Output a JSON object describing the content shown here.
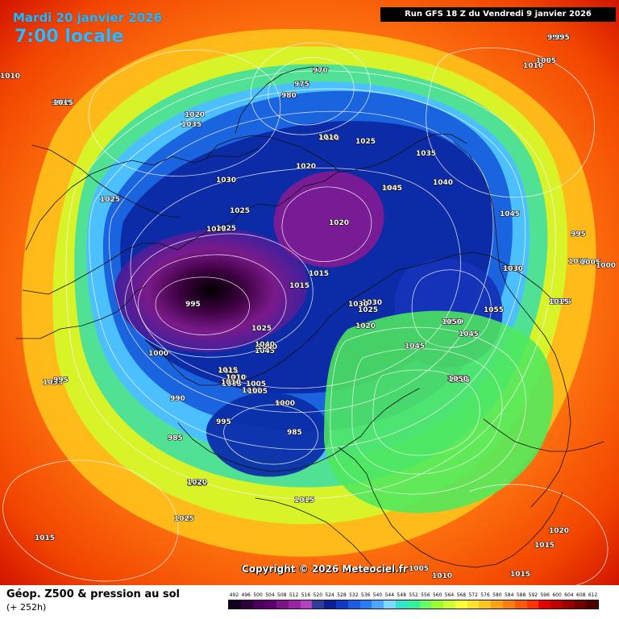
{
  "map": {
    "date_title": "Mardi 20 janvier 2026",
    "time_title": "7:00 locale",
    "run_info": "Run GFS 18 Z du Vendredi 9 janvier 2026",
    "copyright": "Copyright © 2026 Meteociel.fr",
    "variable_label": "Géop. Z500 & pression au sol",
    "forecast_hour": "(+ 252h)",
    "pressure_labels": [
      "970",
      "975",
      "980",
      "985",
      "995",
      "1010",
      "1015",
      "1020",
      "1025",
      "1030",
      "1035",
      "1040",
      "1045",
      "1050",
      "1055",
      "1000",
      "990",
      "1005",
      "995",
      "1010",
      "1015",
      "1020",
      "1025",
      "1030",
      "1035",
      "1040",
      "1045",
      "1050",
      "1055",
      "1010",
      "1015",
      "1020",
      "1025",
      "1030",
      "1035",
      "1040",
      "1045",
      "1050",
      "1055",
      "1000",
      "990",
      "985",
      "995",
      "1015",
      "1010",
      "1005",
      "1025",
      "1030",
      "1015",
      "1020",
      "1035",
      "1010",
      "1015",
      "1005",
      "1000",
      "995",
      "980",
      "975",
      "970",
      "1015",
      "1010",
      "1005",
      "1000",
      "995",
      "1020",
      "1015",
      "1020",
      "1025",
      "1030",
      "1035",
      "1045",
      "1055",
      "1045",
      "1030",
      "1015",
      "995",
      "1005",
      "1010",
      "1015",
      "1020",
      "1025",
      "1030",
      "1035",
      "1040",
      "1045",
      "1050",
      "1055",
      "1015",
      "1010",
      "1005",
      "1000",
      "995",
      "1015",
      "1010",
      "1005",
      "1015",
      "1020",
      "1025",
      "1035",
      "1030"
    ],
    "scale_values": [
      "492",
      "496",
      "500",
      "504",
      "508",
      "512",
      "516",
      "520",
      "524",
      "528",
      "532",
      "536",
      "540",
      "544",
      "548",
      "552",
      "556",
      "560",
      "564",
      "568",
      "572",
      "576",
      "580",
      "584",
      "588",
      "592",
      "596",
      "600",
      "604",
      "608",
      "612"
    ],
    "scale_colors": [
      "#11001f",
      "#2c003a",
      "#4b005d",
      "#5d006f",
      "#7c1188",
      "#9b21a5",
      "#b53fc2",
      "#313b9a",
      "#0d1d96",
      "#0d38c8",
      "#1d5ce6",
      "#2a7cf6",
      "#4ba7ff",
      "#7fd9ff",
      "#33e3cc",
      "#33f09d",
      "#66ff66",
      "#99ff33",
      "#ccff33",
      "#ffff33",
      "#ffe02a",
      "#ffc41f",
      "#ffa315",
      "#ff7f10",
      "#ff5a08",
      "#ff3300",
      "#e60000",
      "#bf0000",
      "#990000",
      "#730000",
      "#4f0000"
    ]
  }
}
